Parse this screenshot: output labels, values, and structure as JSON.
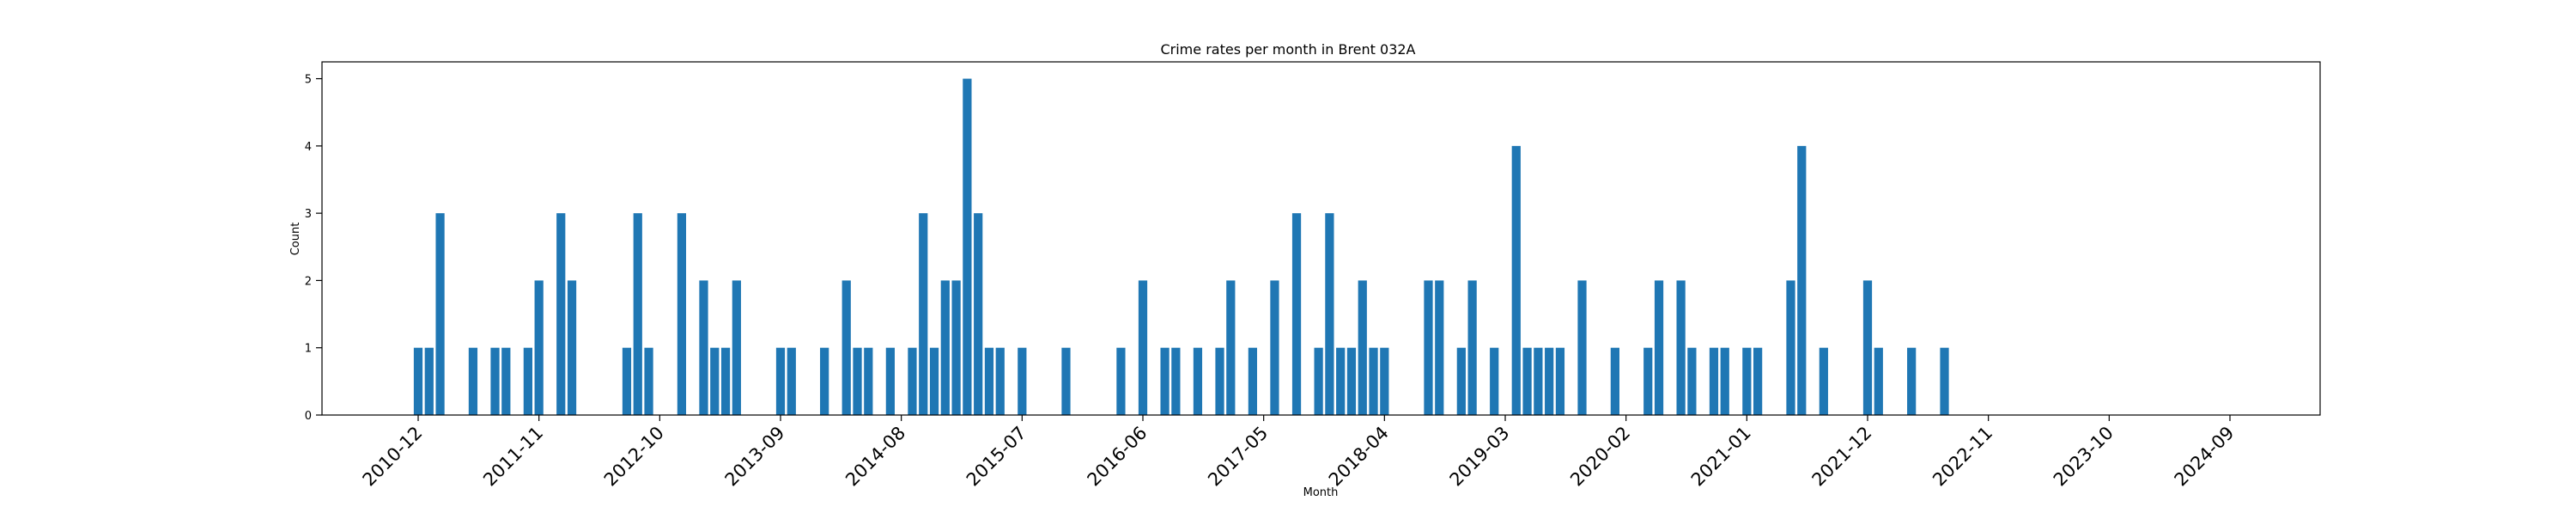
{
  "chart_data": {
    "type": "bar",
    "title": "Crime rates per month in Brent 032A",
    "xlabel": "Month",
    "ylabel": "Count",
    "ylim": [
      0,
      5.25
    ],
    "yticks": [
      0,
      1,
      2,
      3,
      4,
      5
    ],
    "grid": false,
    "bar_color": "#1f77b4",
    "x_tick_labels": [
      "2010-12",
      "2011-11",
      "2012-10",
      "2013-09",
      "2014-08",
      "2015-07",
      "2016-06",
      "2017-05",
      "2018-04",
      "2019-03",
      "2020-02",
      "2021-01",
      "2021-12",
      "2022-11",
      "2023-10",
      "2024-09"
    ],
    "series": [
      {
        "points": [
          {
            "month": "2010-12",
            "value": 1
          },
          {
            "month": "2011-01",
            "value": 1
          },
          {
            "month": "2011-02",
            "value": 3
          },
          {
            "month": "2011-05",
            "value": 1
          },
          {
            "month": "2011-07",
            "value": 1
          },
          {
            "month": "2011-08",
            "value": 1
          },
          {
            "month": "2011-10",
            "value": 1
          },
          {
            "month": "2011-11",
            "value": 2
          },
          {
            "month": "2012-01",
            "value": 3
          },
          {
            "month": "2012-02",
            "value": 2
          },
          {
            "month": "2012-07",
            "value": 1
          },
          {
            "month": "2012-08",
            "value": 3
          },
          {
            "month": "2012-09",
            "value": 1
          },
          {
            "month": "2012-12",
            "value": 3
          },
          {
            "month": "2013-02",
            "value": 2
          },
          {
            "month": "2013-03",
            "value": 1
          },
          {
            "month": "2013-04",
            "value": 1
          },
          {
            "month": "2013-05",
            "value": 2
          },
          {
            "month": "2013-09",
            "value": 1
          },
          {
            "month": "2013-10",
            "value": 1
          },
          {
            "month": "2014-01",
            "value": 1
          },
          {
            "month": "2014-03",
            "value": 2
          },
          {
            "month": "2014-04",
            "value": 1
          },
          {
            "month": "2014-05",
            "value": 1
          },
          {
            "month": "2014-07",
            "value": 1
          },
          {
            "month": "2014-09",
            "value": 1
          },
          {
            "month": "2014-10",
            "value": 3
          },
          {
            "month": "2014-11",
            "value": 1
          },
          {
            "month": "2014-12",
            "value": 2
          },
          {
            "month": "2015-01",
            "value": 2
          },
          {
            "month": "2015-02",
            "value": 5
          },
          {
            "month": "2015-03",
            "value": 3
          },
          {
            "month": "2015-04",
            "value": 1
          },
          {
            "month": "2015-05",
            "value": 1
          },
          {
            "month": "2015-07",
            "value": 1
          },
          {
            "month": "2015-11",
            "value": 1
          },
          {
            "month": "2016-04",
            "value": 1
          },
          {
            "month": "2016-06",
            "value": 2
          },
          {
            "month": "2016-08",
            "value": 1
          },
          {
            "month": "2016-09",
            "value": 1
          },
          {
            "month": "2016-11",
            "value": 1
          },
          {
            "month": "2017-01",
            "value": 1
          },
          {
            "month": "2017-02",
            "value": 2
          },
          {
            "month": "2017-04",
            "value": 1
          },
          {
            "month": "2017-06",
            "value": 2
          },
          {
            "month": "2017-08",
            "value": 3
          },
          {
            "month": "2017-10",
            "value": 1
          },
          {
            "month": "2017-11",
            "value": 3
          },
          {
            "month": "2017-12",
            "value": 1
          },
          {
            "month": "2018-01",
            "value": 1
          },
          {
            "month": "2018-02",
            "value": 2
          },
          {
            "month": "2018-03",
            "value": 1
          },
          {
            "month": "2018-04",
            "value": 1
          },
          {
            "month": "2018-08",
            "value": 2
          },
          {
            "month": "2018-09",
            "value": 2
          },
          {
            "month": "2018-11",
            "value": 1
          },
          {
            "month": "2018-12",
            "value": 2
          },
          {
            "month": "2019-02",
            "value": 1
          },
          {
            "month": "2019-04",
            "value": 4
          },
          {
            "month": "2019-05",
            "value": 1
          },
          {
            "month": "2019-06",
            "value": 1
          },
          {
            "month": "2019-07",
            "value": 1
          },
          {
            "month": "2019-08",
            "value": 1
          },
          {
            "month": "2019-10",
            "value": 2
          },
          {
            "month": "2020-01",
            "value": 1
          },
          {
            "month": "2020-04",
            "value": 1
          },
          {
            "month": "2020-05",
            "value": 2
          },
          {
            "month": "2020-07",
            "value": 2
          },
          {
            "month": "2020-08",
            "value": 1
          },
          {
            "month": "2020-10",
            "value": 1
          },
          {
            "month": "2020-11",
            "value": 1
          },
          {
            "month": "2021-01",
            "value": 1
          },
          {
            "month": "2021-02",
            "value": 1
          },
          {
            "month": "2021-05",
            "value": 2
          },
          {
            "month": "2021-06",
            "value": 4
          },
          {
            "month": "2021-08",
            "value": 1
          },
          {
            "month": "2021-12",
            "value": 2
          },
          {
            "month": "2022-01",
            "value": 1
          },
          {
            "month": "2022-04",
            "value": 1
          },
          {
            "month": "2022-07",
            "value": 1
          },
          {
            "month": "2023-00",
            "value": 0
          }
        ]
      }
    ]
  }
}
